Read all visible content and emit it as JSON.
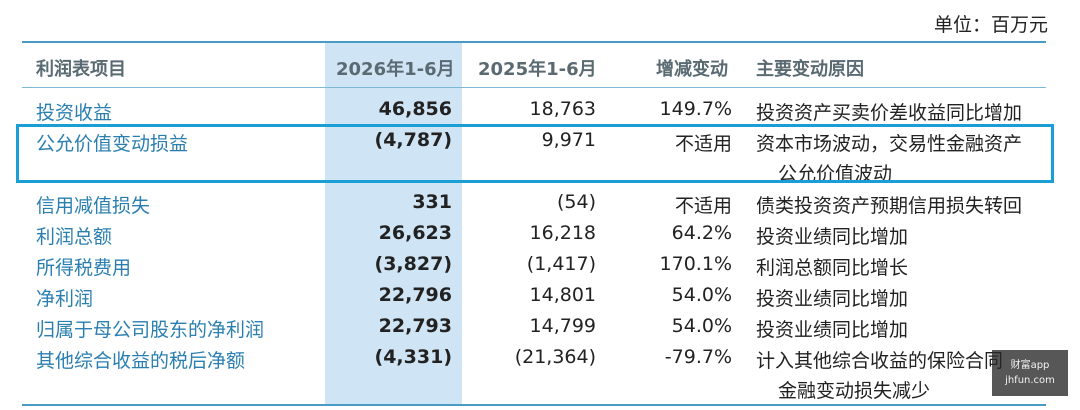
{
  "unit_label": "单位：百万元",
  "headers": {
    "item": "利润表项目",
    "y2026": "2026年1-6月",
    "y2025": "2025年1-6月",
    "change": "增减变动",
    "reason": "主要变动原因"
  },
  "rows": [
    {
      "item": "投资收益",
      "y2026": "46,856",
      "y2025": "18,763",
      "change": "149.7%",
      "reason": "投资资产买卖价差收益同比增加",
      "reason2": ""
    },
    {
      "item": "公允价值变动损益",
      "y2026": "(4,787)",
      "y2025": "9,971",
      "change": "不适用",
      "reason": "资本市场波动，交易性金融资产",
      "reason2": "公允价值波动"
    },
    {
      "item": "信用减值损失",
      "y2026": "331",
      "y2025": "(54)",
      "change": "不适用",
      "reason": "债类投资资产预期信用损失转回",
      "reason2": ""
    },
    {
      "item": "利润总额",
      "y2026": "26,623",
      "y2025": "16,218",
      "change": "64.2%",
      "reason": "投资业绩同比增加",
      "reason2": ""
    },
    {
      "item": "所得税费用",
      "y2026": "(3,827)",
      "y2025": "(1,417)",
      "change": "170.1%",
      "reason": "利润总额同比增长",
      "reason2": ""
    },
    {
      "item": "净利润",
      "y2026": "22,796",
      "y2025": "14,801",
      "change": "54.0%",
      "reason": "投资业绩同比增加",
      "reason2": ""
    },
    {
      "item": "归属于母公司股东的净利润",
      "y2026": "22,793",
      "y2025": "14,799",
      "change": "54.0%",
      "reason": "投资业绩同比增加",
      "reason2": ""
    },
    {
      "item": "其他综合收益的税后净额",
      "y2026": "(4,331)",
      "y2025": "(21,364)",
      "change": "-79.7%",
      "reason": "计入其他综合收益的保险合同",
      "reason2": "金融变动损失减少"
    }
  ],
  "watermark": {
    "line1": "财富app",
    "line2": "jhfun.com"
  }
}
